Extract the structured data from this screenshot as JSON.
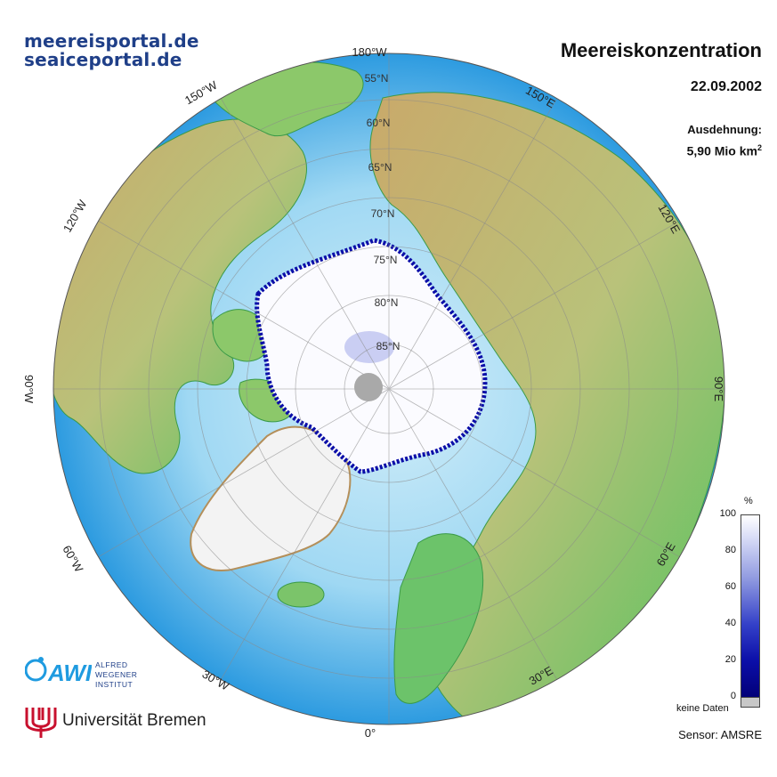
{
  "header": {
    "site_de": "meereisportal.de",
    "site_en": "seaiceportal.de",
    "title": "Meereiskonzentration",
    "date": "22.09.2002",
    "extent_label": "Ausdehnung:",
    "extent_value": "5,90 Mio km",
    "extent_unit_sup": "2"
  },
  "map": {
    "longitude_labels": [
      "180°W",
      "150°E",
      "120°E",
      "90°E",
      "60°E",
      "30°E",
      "0°",
      "30°W",
      "60°W",
      "90°W",
      "120°W",
      "150°W"
    ],
    "latitude_labels": [
      "55°N",
      "60°N",
      "65°N",
      "70°N",
      "75°N",
      "80°N",
      "85°N"
    ],
    "colors": {
      "ocean_deep": "#1e90d6",
      "ocean_shelf": "#bfe7f7",
      "land_low": "#3fbf55",
      "land_high": "#c9a96a",
      "ice": "#ffffff",
      "ice_edge": "#0b0ea8",
      "nodata": "#a9a9a9"
    }
  },
  "legend": {
    "unit": "%",
    "ticks": [
      "100",
      "80",
      "60",
      "40",
      "20",
      "0"
    ],
    "nodata_label": "keine Daten"
  },
  "footer": {
    "sensor": "Sensor: AMSRE",
    "awi_line1": "ALFRED",
    "awi_line2": "WEGENER",
    "awi_line3": "INSTITUT",
    "awi_mark": "AWI",
    "university": "Universität Bremen"
  }
}
